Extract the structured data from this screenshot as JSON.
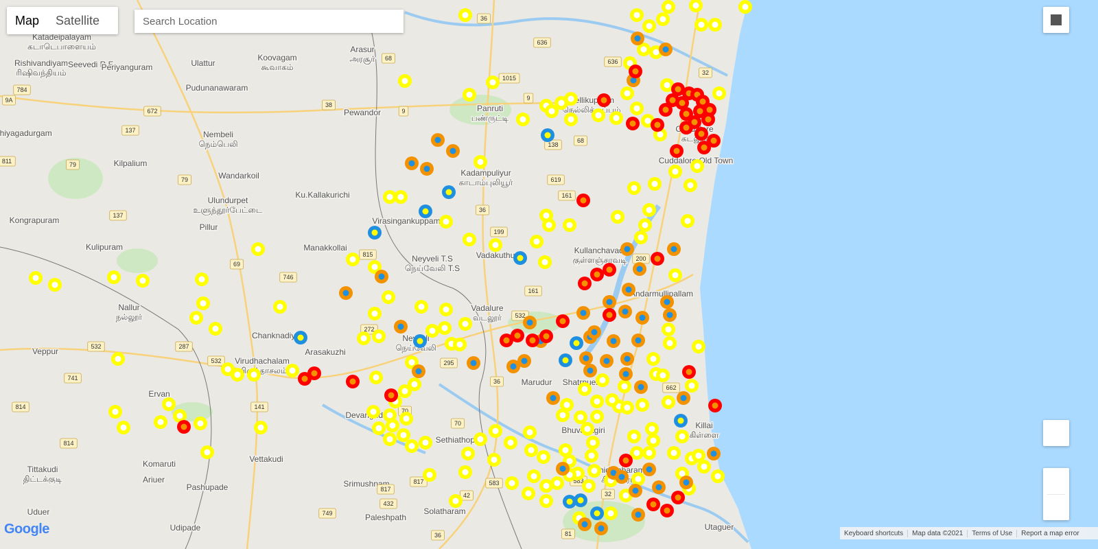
{
  "controls": {
    "map_types": [
      "Map",
      "Satellite"
    ],
    "search_placeholder": "Search Location"
  },
  "places": [
    {
      "name": "Katadeipalayam",
      "local": "கடாடெபாளையம்"
    },
    {
      "name": "Rishivandiyam",
      "local": "ரிஷிவந்தியம்"
    },
    {
      "name": "Seevedi R.F."
    },
    {
      "name": "Periyanguram"
    },
    {
      "name": "Ulattur"
    },
    {
      "name": "Koovagam",
      "local": "கூவாகம்"
    },
    {
      "name": "Arasur",
      "local": "அரசூர்"
    },
    {
      "name": "Pudunanawaram"
    },
    {
      "name": "Panruti",
      "local": "பண்ருட்டி"
    },
    {
      "name": "Nellikuppam",
      "local": "நெல்லிக்குப்பம்"
    },
    {
      "name": "Pewandor"
    },
    {
      "name": "Nembeli",
      "local": "நெம்பெலி"
    },
    {
      "name": "Thiyagadurgam"
    },
    {
      "name": "Kilpalium"
    },
    {
      "name": "Wandarkoil"
    },
    {
      "name": "Kadampuliyur",
      "local": "காடாம்புலியூர்"
    },
    {
      "name": "Ulundurpet",
      "local": "உளுந்தூர்பேட்டை"
    },
    {
      "name": "Ku.Kallakurichi"
    },
    {
      "name": "Kongrapuram"
    },
    {
      "name": "Pillur"
    },
    {
      "name": "Virasingankuppam"
    },
    {
      "name": "Cuddalore",
      "local": "கடலூர்"
    },
    {
      "name": "Cuddalore Old Town"
    },
    {
      "name": "Kullanchavadi",
      "local": "குள்ளஞ்சாவடி"
    },
    {
      "name": "Manakkollai"
    },
    {
      "name": "Kulipuram"
    },
    {
      "name": "Vadakuthu"
    },
    {
      "name": "Neyveli T.S",
      "local": "நெய்வேலி T.S"
    },
    {
      "name": "Andarmullipallam"
    },
    {
      "name": "Nallur",
      "local": "நல்லூர்"
    },
    {
      "name": "Vadalure",
      "local": "வடலூர்"
    },
    {
      "name": "Chanknadiyi"
    },
    {
      "name": "Neyveli",
      "local": "நெய்வேலி"
    },
    {
      "name": "Arasakuzhi"
    },
    {
      "name": "Veppur"
    },
    {
      "name": "Virudhachalam",
      "local": "விருத்தாசலம்"
    },
    {
      "name": "Marudur"
    },
    {
      "name": "Shatrpuer"
    },
    {
      "name": "Ervan"
    },
    {
      "name": "Devangudi"
    },
    {
      "name": "Bhuvanagiri"
    },
    {
      "name": "Killai",
      "local": "கிள்ளை"
    },
    {
      "name": "Sethiathoppu"
    },
    {
      "name": "Vettakudi"
    },
    {
      "name": "Komaruti"
    },
    {
      "name": "Tittakudi",
      "local": "திட்டக்குடி"
    },
    {
      "name": "Chidambaram",
      "local": "சிதம்பரம்"
    },
    {
      "name": "Srimushnam"
    },
    {
      "name": "Pashupade"
    },
    {
      "name": "Ariuer"
    },
    {
      "name": "Solatharam"
    },
    {
      "name": "Paleshpath"
    },
    {
      "name": "Udipade"
    },
    {
      "name": "Utaguer"
    },
    {
      "name": "Uduer"
    }
  ],
  "roads": [
    "36",
    "636",
    "1015",
    "68",
    "9",
    "9",
    "38",
    "672",
    "137",
    "79",
    "79",
    "137",
    "784",
    "9A",
    "811",
    "619",
    "161",
    "36",
    "199",
    "815",
    "746",
    "69",
    "200",
    "161",
    "532",
    "272",
    "287",
    "532",
    "532",
    "295",
    "741",
    "36",
    "662",
    "814",
    "141",
    "70",
    "70",
    "814",
    "817",
    "817",
    "583",
    "583",
    "32",
    "432",
    "749",
    "81",
    "36",
    "42",
    "32",
    "138",
    "68",
    "636"
  ],
  "footer": {
    "logo": "Google",
    "links": [
      "Keyboard shortcuts",
      "Map data ©2021",
      "Terms of Use",
      "Report a map error"
    ]
  }
}
